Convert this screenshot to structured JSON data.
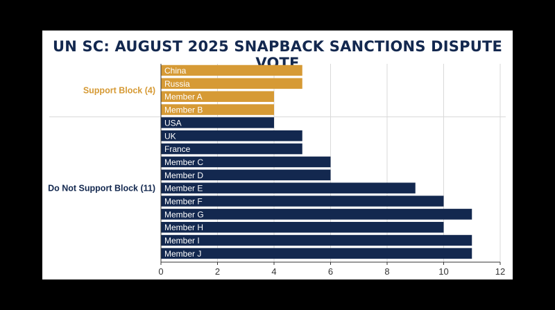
{
  "chart_data": {
    "type": "bar",
    "orientation": "horizontal",
    "title": "UN SC: AUGUST 2025 SNAPBACK SANCTIONS DISPUTE VOTE",
    "xlabel": "",
    "ylabel": "",
    "xlim": [
      0,
      12
    ],
    "xticks": [
      "0",
      "2",
      "4",
      "6",
      "8",
      "10",
      "12"
    ],
    "grid": true,
    "legend": "none",
    "groups": [
      {
        "name": "Support Block (4)",
        "color": "#d69a35",
        "categories": [
          "China",
          "Russia",
          "Member A",
          "Member B"
        ],
        "values": [
          5,
          5,
          4,
          4
        ]
      },
      {
        "name": "Do Not Support Block (11)",
        "color": "#13284f",
        "categories": [
          "USA",
          "UK",
          "France",
          "Member C",
          "Member D",
          "Member E",
          "Member F",
          "Member G",
          "Member H",
          "Member I",
          "Member J"
        ],
        "values": [
          4,
          5,
          5,
          6,
          6,
          9,
          10,
          11,
          10,
          11,
          11
        ]
      }
    ]
  }
}
